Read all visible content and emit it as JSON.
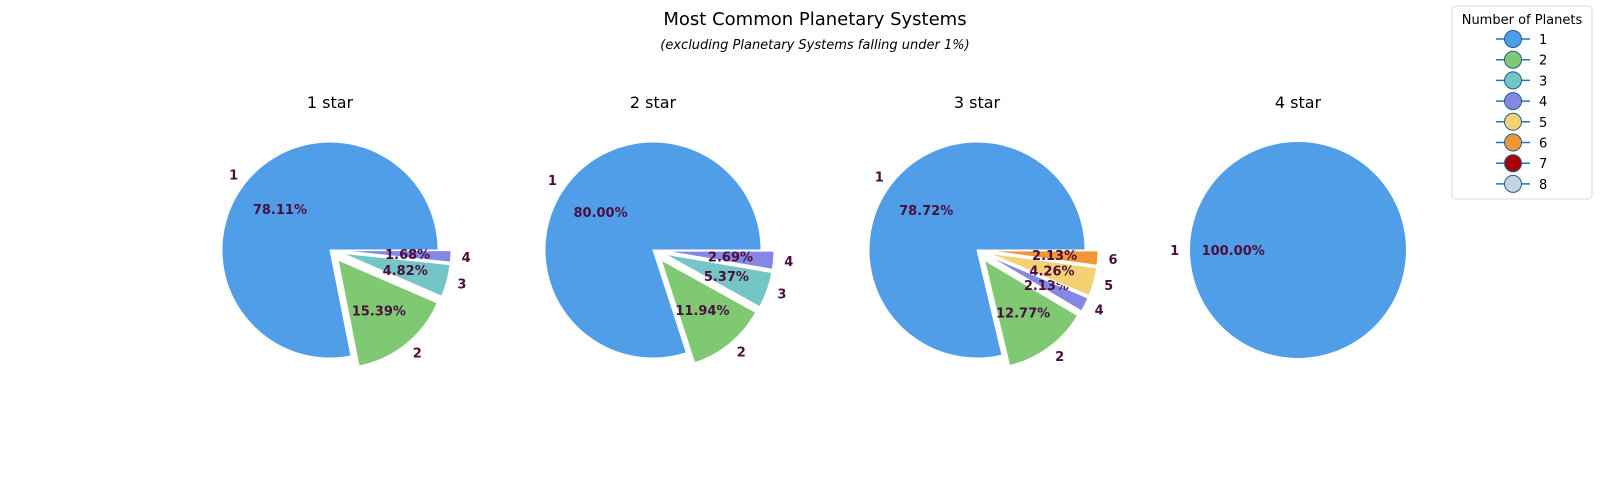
{
  "chart_data": {
    "type": "pie",
    "title": "Most Common Planetary Systems",
    "subtitle": "(excluding Planetary Systems falling under 1%)",
    "legend": {
      "title": "Number of Planets",
      "placement": "top-right",
      "entries": [
        {
          "label": "1",
          "color": "#519ee8"
        },
        {
          "label": "2",
          "color": "#7fc972"
        },
        {
          "label": "3",
          "color": "#73c6c5"
        },
        {
          "label": "4",
          "color": "#8587e2"
        },
        {
          "label": "5",
          "color": "#f4d173"
        },
        {
          "label": "6",
          "color": "#ef9737"
        },
        {
          "label": "7",
          "color": "#a8000b"
        },
        {
          "label": "8",
          "color": "#c4d4df"
        }
      ]
    },
    "pies": [
      {
        "title": "1 star",
        "slices": [
          {
            "label": "1",
            "value": 78.11,
            "pct": "78.11%",
            "color": "#519ee8"
          },
          {
            "label": "2",
            "value": 15.39,
            "pct": "15.39%",
            "color": "#7fc972"
          },
          {
            "label": "3",
            "value": 4.82,
            "pct": "4.82%",
            "color": "#73c6c5"
          },
          {
            "label": "4",
            "value": 1.68,
            "pct": "1.68%",
            "color": "#8587e2"
          }
        ]
      },
      {
        "title": "2 star",
        "slices": [
          {
            "label": "1",
            "value": 80.0,
            "pct": "80.00%",
            "color": "#519ee8"
          },
          {
            "label": "2",
            "value": 11.94,
            "pct": "11.94%",
            "color": "#7fc972"
          },
          {
            "label": "3",
            "value": 5.37,
            "pct": "5.37%",
            "color": "#73c6c5"
          },
          {
            "label": "4",
            "value": 2.69,
            "pct": "2.69%",
            "color": "#8587e2"
          }
        ]
      },
      {
        "title": "3 star",
        "slices": [
          {
            "label": "1",
            "value": 78.72,
            "pct": "78.72%",
            "color": "#519ee8"
          },
          {
            "label": "2",
            "value": 12.77,
            "pct": "12.77%",
            "color": "#7fc972"
          },
          {
            "label": "4",
            "value": 2.13,
            "pct": "2.13%",
            "color": "#8587e2"
          },
          {
            "label": "5",
            "value": 4.26,
            "pct": "4.26%",
            "color": "#f4d173"
          },
          {
            "label": "6",
            "value": 2.13,
            "pct": "2.13%",
            "color": "#ef9737"
          }
        ]
      },
      {
        "title": "4 star",
        "slices": [
          {
            "label": "1",
            "value": 100.0,
            "pct": "100.00%",
            "color": "#519ee8"
          }
        ]
      }
    ]
  }
}
